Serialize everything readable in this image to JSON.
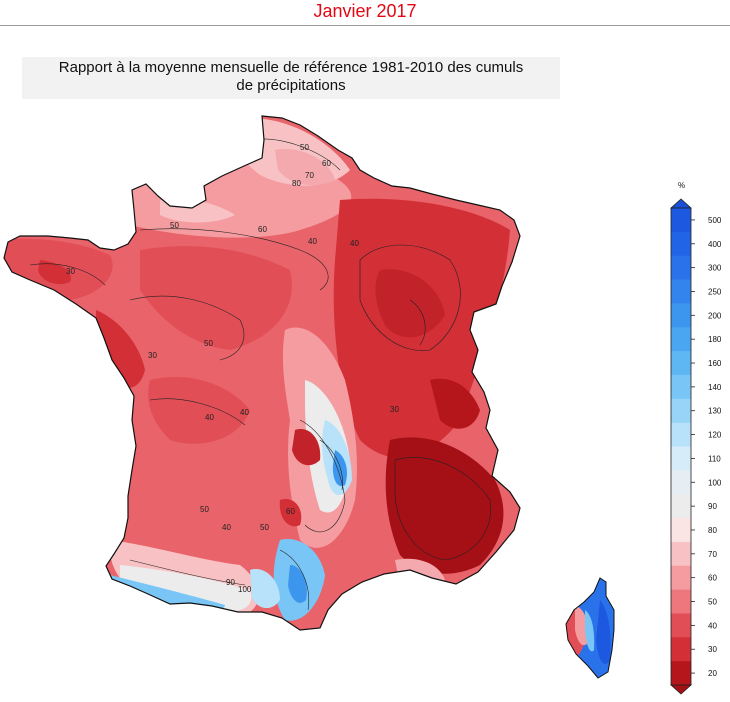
{
  "header": {
    "title": "Janvier 2017"
  },
  "map": {
    "title_line1": "Rapport à la moyenne mensuelle de référence 1981-2010 des cumuls",
    "title_line2": "de précipitations",
    "contour_labels": [
      "50",
      "60",
      "70",
      "80",
      "40",
      "50",
      "30",
      "30",
      "40",
      "40",
      "50",
      "60",
      "50",
      "40",
      "30",
      "90",
      "100",
      "60",
      "40",
      "50"
    ]
  },
  "legend": {
    "unit": "%",
    "levels": [
      {
        "value": "500",
        "color": "#1c58e0"
      },
      {
        "value": "400",
        "color": "#2264e6"
      },
      {
        "value": "300",
        "color": "#2a72ea"
      },
      {
        "value": "250",
        "color": "#3384ec"
      },
      {
        "value": "200",
        "color": "#3d96ee"
      },
      {
        "value": "180",
        "color": "#4aa6f0"
      },
      {
        "value": "160",
        "color": "#5eb6f3"
      },
      {
        "value": "140",
        "color": "#79c6f6"
      },
      {
        "value": "130",
        "color": "#98d4f8"
      },
      {
        "value": "120",
        "color": "#b8e1fa"
      },
      {
        "value": "110",
        "color": "#d6ecf9"
      },
      {
        "value": "100",
        "color": "#e6eef3"
      },
      {
        "value": "90",
        "color": "#ececec"
      },
      {
        "value": "80",
        "color": "#fbe4e4"
      },
      {
        "value": "70",
        "color": "#f8c2c4"
      },
      {
        "value": "60",
        "color": "#f49ca0"
      },
      {
        "value": "50",
        "color": "#ee777d"
      },
      {
        "value": "40",
        "color": "#e24e56"
      },
      {
        "value": "30",
        "color": "#d32f36"
      },
      {
        "value": "20",
        "color": "#b5161c"
      }
    ],
    "top_arrow_color": "#1a50d6",
    "bottom_arrow_color": "#a50f16"
  }
}
